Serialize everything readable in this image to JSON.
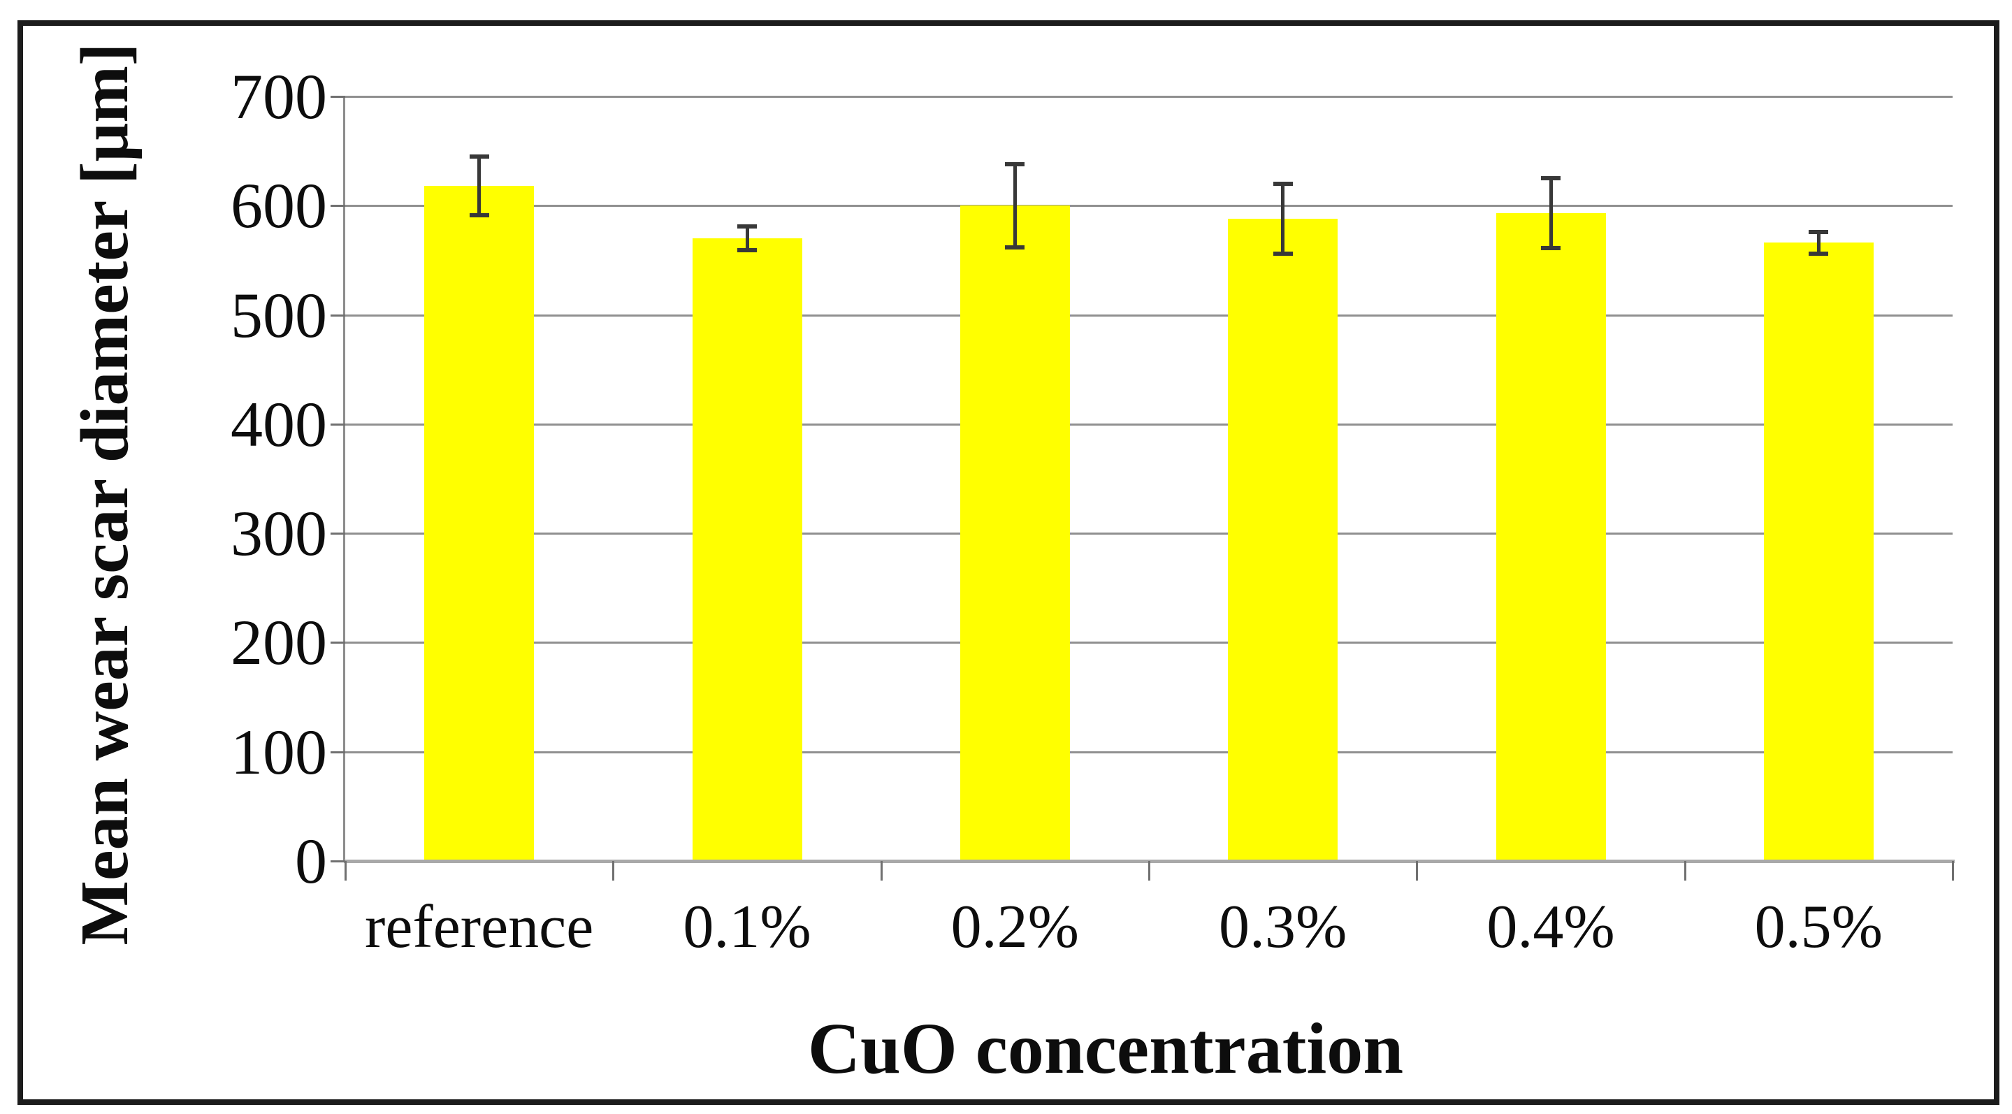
{
  "chart_data": {
    "type": "bar",
    "title": "",
    "xlabel": "CuO concentration",
    "ylabel": "Mean wear scar diameter [μm]",
    "categories": [
      "reference",
      "0.1%",
      "0.2%",
      "0.3%",
      "0.4%",
      "0.5%"
    ],
    "values": [
      618,
      570,
      600,
      588,
      593,
      566
    ],
    "error_bars": [
      27,
      11,
      38,
      32,
      32,
      10
    ],
    "ylim": [
      0,
      700
    ],
    "yticks": [
      0,
      100,
      200,
      300,
      400,
      500,
      600,
      700
    ],
    "grid": "horizontal-major",
    "legend": "none",
    "colors": {
      "bar": "#ffff00",
      "gridline": "#909090",
      "y_axis_line": "#8c8c8c",
      "x_axis_line": "#a9a9a9",
      "tick": "#707070",
      "error_bar": "#383838",
      "border": "#1c1c1c",
      "text": "#0d0d0d",
      "background": "#ffffff"
    }
  }
}
